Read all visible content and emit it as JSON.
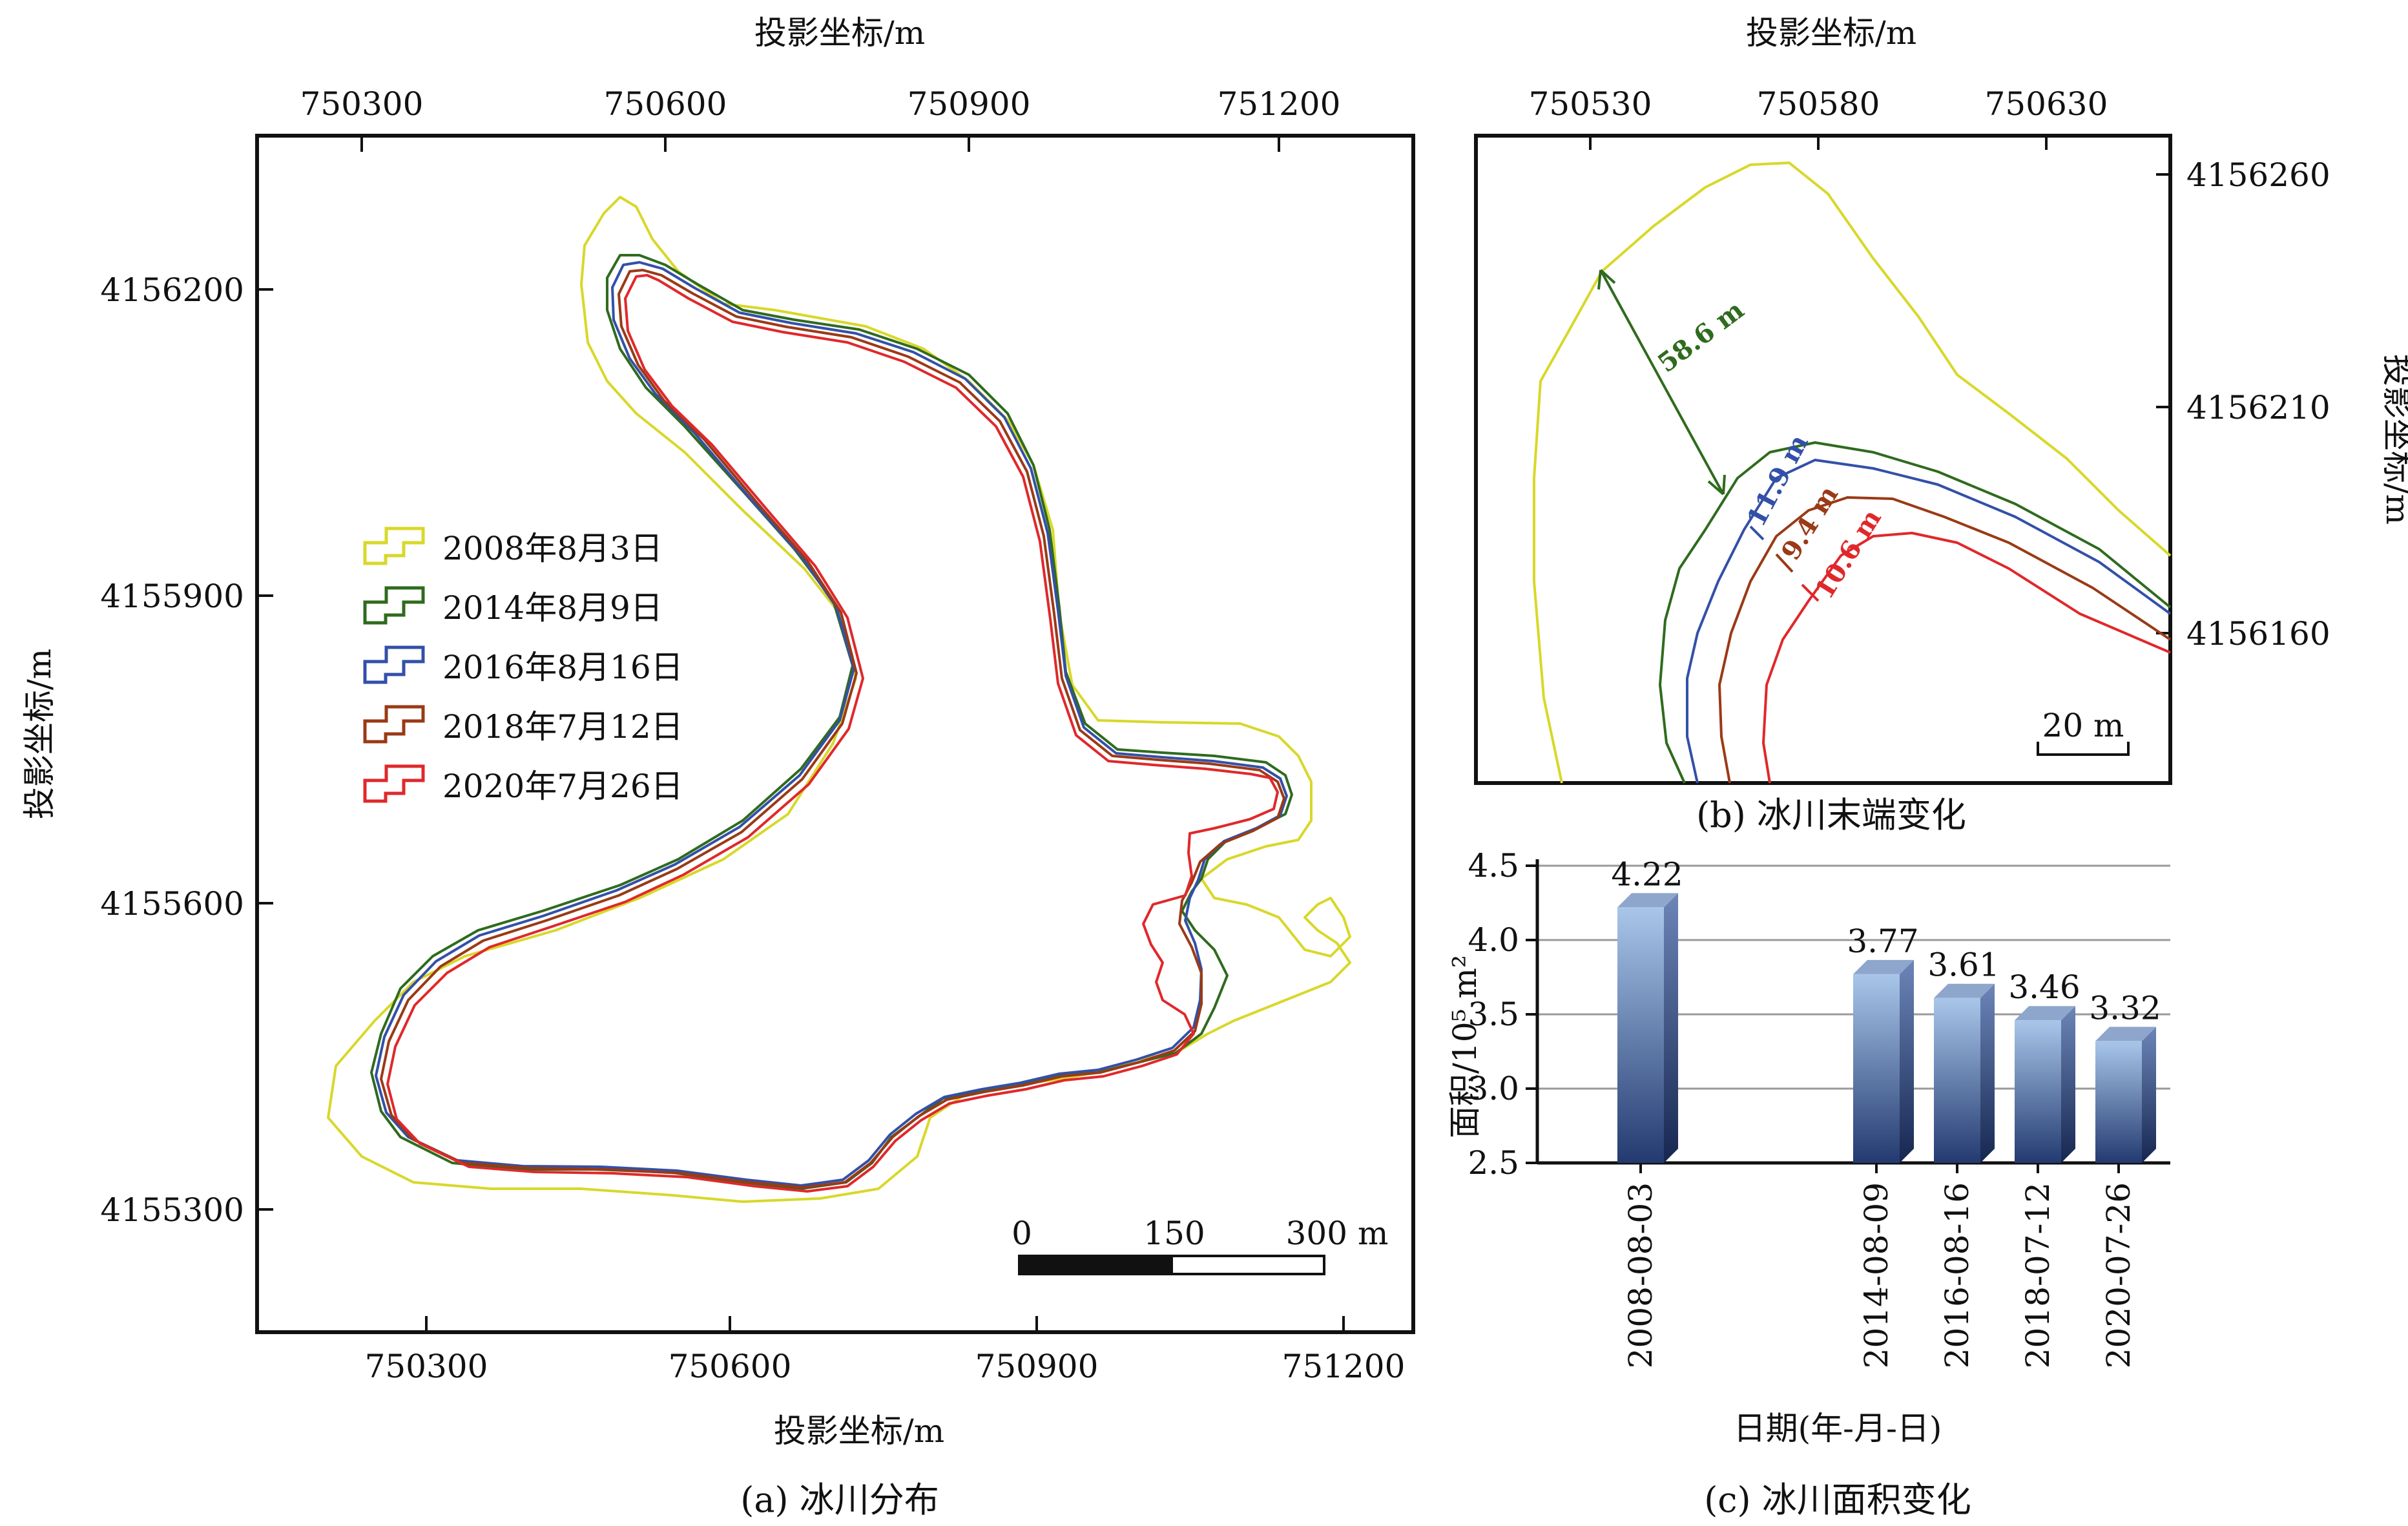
{
  "colors": {
    "c2008": "#d8d82a",
    "c2014": "#2f6b1e",
    "c2016": "#3350a8",
    "c2018": "#9a3a16",
    "c2020": "#e0282b",
    "bar_top": "#a9c6ea",
    "bar_bottom": "#233a70"
  },
  "panel_a": {
    "caption": "(a) 冰川分布",
    "top_axis_label": "投影坐标/m",
    "bottom_axis_label": "投影坐标/m",
    "left_axis_label": "投影坐标/m",
    "x_ticks": [
      "750300",
      "750600",
      "750900",
      "751200"
    ],
    "y_ticks": [
      "4156200",
      "4155900",
      "4155600",
      "4155300"
    ],
    "scale_bar": {
      "labels": [
        "0",
        "150",
        "300 m"
      ]
    },
    "legend": [
      {
        "label": "2008年8月3日",
        "color_key": "c2008"
      },
      {
        "label": "2014年8月9日",
        "color_key": "c2014"
      },
      {
        "label": "2016年8月16日",
        "color_key": "c2016"
      },
      {
        "label": "2018年7月12日",
        "color_key": "c2018"
      },
      {
        "label": "2020年7月26日",
        "color_key": "c2020"
      }
    ]
  },
  "panel_b": {
    "caption": "(b) 冰川末端变化",
    "top_axis_label": "投影坐标/m",
    "right_axis_label": "投影坐标/m",
    "x_ticks": [
      "750530",
      "750580",
      "750630"
    ],
    "y_ticks": [
      "4156260",
      "4156210",
      "4156160"
    ],
    "scale_bar_label": "20 m",
    "measurements": [
      {
        "label": "58.6 m",
        "color_key": "c2014"
      },
      {
        "label": "11.9 m",
        "color_key": "c2016"
      },
      {
        "label": "9.4 m",
        "color_key": "c2018"
      },
      {
        "label": "10.6 m",
        "color_key": "c2020"
      }
    ]
  },
  "chart_data": {
    "type": "bar",
    "title": "(c) 冰川面积变化",
    "xlabel": "日期(年-月-日)",
    "ylabel": "面积/10⁵ m²",
    "ylim": [
      2.5,
      4.5
    ],
    "y_ticks": [
      "2.5",
      "3.0",
      "3.5",
      "4.0",
      "4.5"
    ],
    "grid": true,
    "categories": [
      "2008-08-03",
      "2014-08-09",
      "2016-08-16",
      "2018-07-12",
      "2020-07-26"
    ],
    "values": [
      4.22,
      3.77,
      3.61,
      3.46,
      3.32
    ],
    "value_labels": [
      "4.22",
      "3.77",
      "3.61",
      "3.46",
      "3.32"
    ]
  }
}
